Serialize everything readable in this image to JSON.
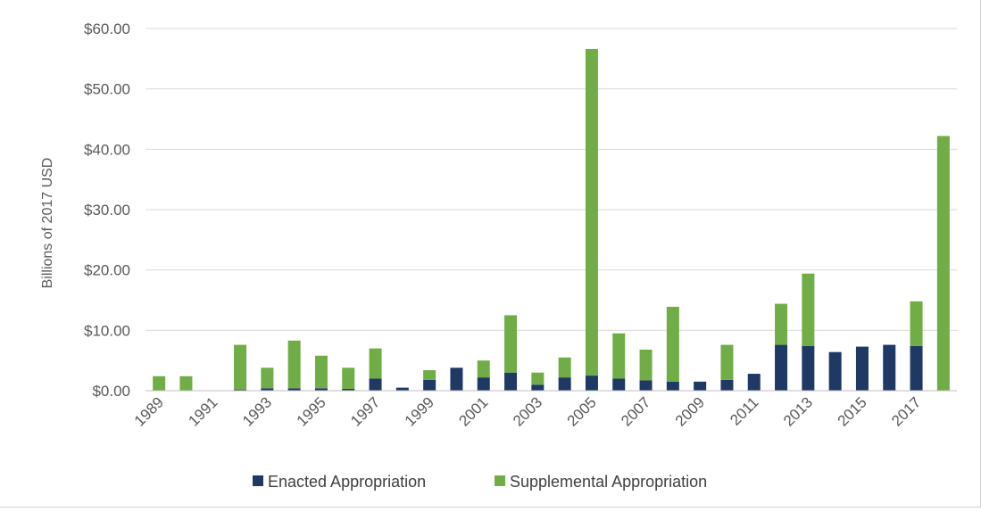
{
  "chart_data": {
    "type": "bar",
    "stacked": true,
    "title": "",
    "xlabel": "",
    "ylabel": "Billions of 2017 USD",
    "ylim": [
      0,
      60
    ],
    "y_ticks": [
      "$0.00",
      "$10.00",
      "$20.00",
      "$30.00",
      "$40.00",
      "$50.00",
      "$60.00"
    ],
    "y_tick_values": [
      0,
      10,
      20,
      30,
      40,
      50,
      60
    ],
    "grid": true,
    "legend_position": "bottom",
    "x_tick_labels": [
      "1989",
      "1991",
      "1993",
      "1995",
      "1997",
      "1999",
      "2001",
      "2003",
      "2005",
      "2007",
      "2009",
      "2011",
      "2013",
      "2015",
      "2017"
    ],
    "categories": [
      "1989",
      "1990",
      "1991",
      "1992",
      "1993",
      "1994",
      "1995",
      "1996",
      "1997",
      "1998",
      "1999",
      "2000",
      "2001",
      "2002",
      "2003",
      "2004",
      "2005",
      "2006",
      "2007",
      "2008",
      "2009",
      "2010",
      "2011",
      "2012",
      "2013",
      "2014",
      "2015",
      "2016",
      "2017",
      "2018"
    ],
    "series": [
      {
        "name": "Enacted Appropriation",
        "color": "#1f3864",
        "values": [
          0,
          0,
          0,
          0.2,
          0.4,
          0.4,
          0.4,
          0.3,
          2.0,
          0.5,
          1.8,
          3.8,
          2.2,
          3.0,
          1.0,
          2.2,
          2.5,
          2.0,
          1.7,
          1.5,
          1.5,
          1.8,
          2.8,
          7.6,
          7.4,
          6.4,
          7.3,
          7.6,
          7.4,
          0
        ]
      },
      {
        "name": "Supplemental Appropriation",
        "color": "#70ad47",
        "values": [
          2.4,
          2.4,
          0,
          7.4,
          3.4,
          7.9,
          5.4,
          3.5,
          5.0,
          0,
          1.6,
          0,
          2.8,
          9.5,
          2.0,
          3.3,
          54.1,
          7.5,
          5.1,
          12.4,
          0,
          5.8,
          0,
          6.8,
          12.0,
          0,
          0,
          0,
          7.4,
          42.2
        ]
      }
    ]
  }
}
